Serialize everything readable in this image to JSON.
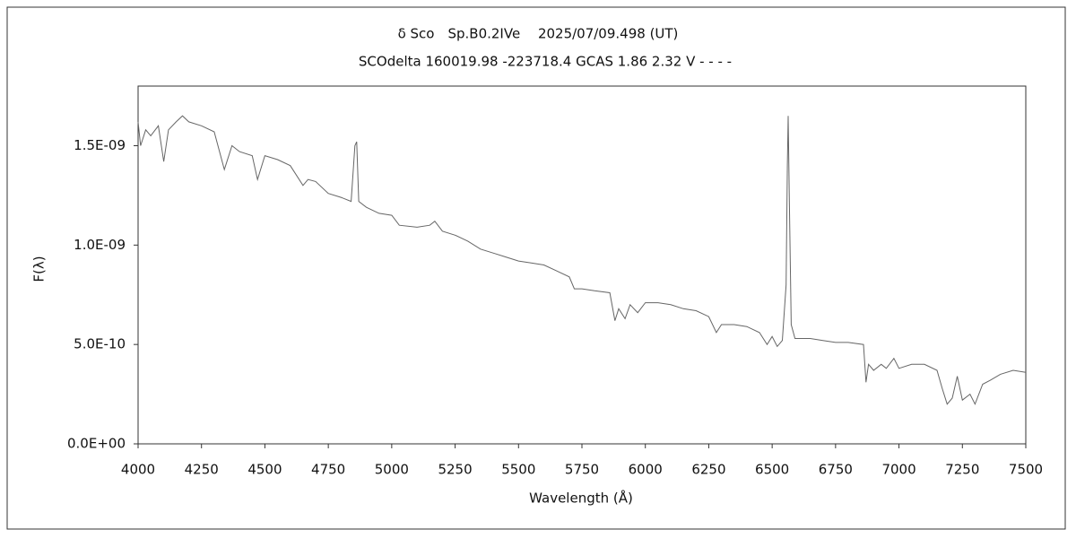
{
  "chart_data": {
    "type": "line",
    "title": "δ Sco　Sp.B0.2IVe　 2025/07/09.498 (UT)",
    "subtitle": "SCOdelta 160019.98 -223718.4 GCAS 1.86 2.32 V - - - -",
    "x_label": "Wavelength (Å)",
    "y_label": "F(λ)",
    "xlim": [
      4000,
      7500
    ],
    "xticks": [
      4000,
      4250,
      4500,
      4750,
      5000,
      5250,
      5500,
      5750,
      6000,
      6250,
      6500,
      6750,
      7000,
      7250,
      7500
    ],
    "ylim": [
      0,
      1.8e-09
    ],
    "yticks": [
      {
        "value": 0,
        "label": "0.0E+00"
      },
      {
        "value": 5e-10,
        "label": "5.0E-10"
      },
      {
        "value": 1e-09,
        "label": "1.0E-09"
      },
      {
        "value": 1.5e-09,
        "label": "1.5E-09"
      }
    ],
    "grid": false,
    "color": "#666666",
    "x": [
      4000,
      4010,
      4030,
      4050,
      4080,
      4101,
      4120,
      4150,
      4175,
      4200,
      4250,
      4300,
      4340,
      4370,
      4400,
      4450,
      4471,
      4500,
      4550,
      4600,
      4650,
      4670,
      4700,
      4750,
      4800,
      4840,
      4855,
      4862,
      4870,
      4900,
      4950,
      5000,
      5030,
      5100,
      5150,
      5170,
      5200,
      5250,
      5300,
      5350,
      5400,
      5450,
      5500,
      5550,
      5600,
      5650,
      5700,
      5720,
      5750,
      5800,
      5860,
      5880,
      5895,
      5920,
      5940,
      5970,
      6000,
      6050,
      6100,
      6150,
      6200,
      6250,
      6280,
      6300,
      6350,
      6400,
      6450,
      6480,
      6500,
      6520,
      6540,
      6555,
      6560,
      6563,
      6568,
      6575,
      6590,
      6650,
      6700,
      6750,
      6800,
      6860,
      6870,
      6880,
      6900,
      6930,
      6950,
      6980,
      7000,
      7050,
      7100,
      7150,
      7170,
      7190,
      7210,
      7230,
      7250,
      7280,
      7300,
      7330,
      7360,
      7400,
      7450,
      7500
    ],
    "values": [
      1.62e-09,
      1.5e-09,
      1.58e-09,
      1.55e-09,
      1.6e-09,
      1.42e-09,
      1.58e-09,
      1.62e-09,
      1.65e-09,
      1.62e-09,
      1.6e-09,
      1.57e-09,
      1.38e-09,
      1.5e-09,
      1.47e-09,
      1.45e-09,
      1.33e-09,
      1.45e-09,
      1.43e-09,
      1.4e-09,
      1.3e-09,
      1.33e-09,
      1.32e-09,
      1.26e-09,
      1.24e-09,
      1.22e-09,
      1.5e-09,
      1.52e-09,
      1.22e-09,
      1.19e-09,
      1.16e-09,
      1.15e-09,
      1.1e-09,
      1.09e-09,
      1.1e-09,
      1.12e-09,
      1.07e-09,
      1.05e-09,
      1.02e-09,
      9.8e-10,
      9.6e-10,
      9.4e-10,
      9.2e-10,
      9.1e-10,
      9e-10,
      8.7e-10,
      8.4e-10,
      7.8e-10,
      7.8e-10,
      7.7e-10,
      7.6e-10,
      6.2e-10,
      6.8e-10,
      6.3e-10,
      7e-10,
      6.6e-10,
      7.1e-10,
      7.1e-10,
      7e-10,
      6.8e-10,
      6.7e-10,
      6.4e-10,
      5.6e-10,
      6e-10,
      6e-10,
      5.9e-10,
      5.6e-10,
      5e-10,
      5.4e-10,
      4.9e-10,
      5.2e-10,
      8e-10,
      1.4e-09,
      1.65e-09,
      1.2e-09,
      6e-10,
      5.3e-10,
      5.3e-10,
      5.2e-10,
      5.1e-10,
      5.1e-10,
      5e-10,
      3.1e-10,
      4e-10,
      3.7e-10,
      4e-10,
      3.8e-10,
      4.3e-10,
      3.8e-10,
      4e-10,
      4e-10,
      3.7e-10,
      2.8e-10,
      2e-10,
      2.3e-10,
      3.4e-10,
      2.2e-10,
      2.5e-10,
      2e-10,
      3e-10,
      3.2e-10,
      3.5e-10,
      3.7e-10,
      3.6e-10
    ]
  }
}
